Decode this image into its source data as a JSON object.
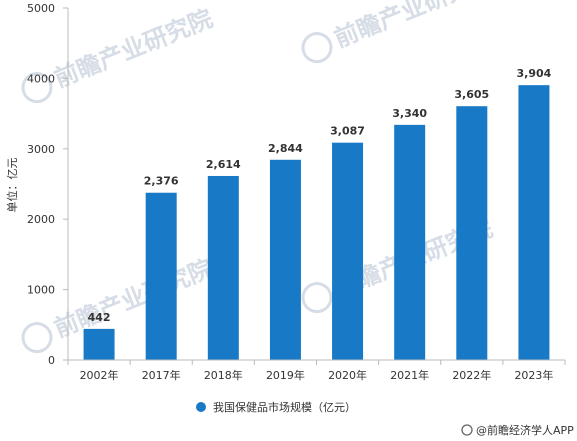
{
  "chart_data": {
    "type": "bar",
    "categories": [
      "2002年",
      "2017年",
      "2018年",
      "2019年",
      "2020年",
      "2021年",
      "2022年",
      "2023年"
    ],
    "series": [
      {
        "name": "我国保健品市场规模（亿元）",
        "values": [
          442,
          2376,
          2614,
          2844,
          3087,
          3340,
          3605,
          3904
        ],
        "data_labels": [
          "442",
          "2,376",
          "2,614",
          "2,844",
          "3,087",
          "3,340",
          "3,605",
          "3,904"
        ]
      }
    ],
    "ylabel": "单位：亿元",
    "ylim": [
      0,
      5000
    ],
    "yticks": [
      0,
      1000,
      2000,
      3000,
      4000,
      5000
    ],
    "grid": false,
    "legend_position": "bottom"
  },
  "colors": {
    "bar": "#1879c6",
    "legend_marker": "#1879c6",
    "axis": "#bbbbbb",
    "watermark": "#d6dde6"
  },
  "watermark": {
    "text": "前瞻产业研究院"
  },
  "footer": {
    "source_text": "@前瞻经济学人APP"
  }
}
